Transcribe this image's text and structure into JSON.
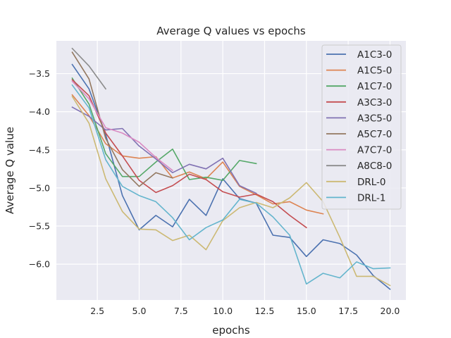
{
  "chart_data": {
    "type": "line",
    "title": "Average Q values vs epochs",
    "xlabel": "epochs",
    "ylabel": "Average Q value",
    "xlim": [
      0.05,
      20.95
    ],
    "ylim": [
      -6.47,
      -3.07
    ],
    "xticks": [
      2.5,
      5.0,
      7.5,
      10.0,
      12.5,
      15.0,
      17.5,
      20.0
    ],
    "xtick_labels": [
      "2.5",
      "5.0",
      "7.5",
      "10.0",
      "12.5",
      "15.0",
      "17.5",
      "20.0"
    ],
    "yticks": [
      -3.5,
      -4.0,
      -4.5,
      -5.0,
      -5.5,
      -6.0
    ],
    "ytick_labels": [
      "−3.5",
      "−4.0",
      "−4.5",
      "−5.0",
      "−5.5",
      "−6.0"
    ],
    "grid": true,
    "legend_position": "top-right",
    "series": [
      {
        "name": "A1C3-0",
        "color": "#4c72b0",
        "x": [
          1,
          2,
          3,
          4,
          5,
          6,
          7,
          8,
          9,
          10,
          11,
          12,
          13,
          14,
          15,
          16,
          17,
          18,
          19,
          20
        ],
        "y": [
          -3.38,
          -3.7,
          -4.3,
          -5.1,
          -5.55,
          -5.36,
          -5.51,
          -5.15,
          -5.36,
          -4.88,
          -5.14,
          -5.2,
          -5.62,
          -5.65,
          -5.9,
          -5.68,
          -5.73,
          -5.88,
          -6.15,
          -6.33
        ]
      },
      {
        "name": "A1C5-0",
        "color": "#dd8452",
        "x": [
          1,
          2,
          3,
          4,
          5,
          6,
          7,
          8,
          9,
          10,
          11,
          12,
          13,
          14,
          15,
          16
        ],
        "y": [
          -3.78,
          -4.05,
          -4.42,
          -4.58,
          -4.61,
          -4.59,
          -4.87,
          -4.79,
          -4.88,
          -4.66,
          -4.98,
          -5.09,
          -5.21,
          -5.18,
          -5.29,
          -5.34
        ]
      },
      {
        "name": "A1C7-0",
        "color": "#55a868",
        "x": [
          1,
          2,
          3,
          4,
          5,
          6,
          7,
          8,
          9,
          10,
          11,
          12
        ],
        "y": [
          -3.56,
          -3.9,
          -4.55,
          -4.85,
          -4.85,
          -4.66,
          -4.49,
          -4.89,
          -4.86,
          -4.9,
          -4.64,
          -4.68
        ]
      },
      {
        "name": "A3C3-0",
        "color": "#c44e52",
        "x": [
          1,
          2,
          3,
          4,
          5,
          6,
          7,
          8,
          9,
          10,
          11,
          12,
          13,
          14,
          15
        ],
        "y": [
          -3.58,
          -3.79,
          -4.28,
          -4.58,
          -4.9,
          -5.06,
          -4.97,
          -4.82,
          -4.89,
          -5.05,
          -5.12,
          -5.08,
          -5.18,
          -5.36,
          -5.52
        ]
      },
      {
        "name": "A3C5-0",
        "color": "#8172b3",
        "x": [
          1,
          2,
          3,
          4,
          5,
          6,
          7,
          8,
          9,
          10,
          11,
          12
        ],
        "y": [
          -3.94,
          -4.06,
          -4.24,
          -4.22,
          -4.45,
          -4.62,
          -4.8,
          -4.69,
          -4.75,
          -4.61,
          -4.97,
          -5.07
        ]
      },
      {
        "name": "A5C7-0",
        "color": "#937860",
        "x": [
          1,
          2,
          3,
          4,
          5,
          6,
          7
        ],
        "y": [
          -3.22,
          -3.57,
          -4.35,
          -4.76,
          -4.98,
          -4.8,
          -4.87
        ]
      },
      {
        "name": "A7C7-0",
        "color": "#da8bc3",
        "x": [
          1,
          2,
          3,
          4,
          5,
          6,
          7
        ],
        "y": [
          -3.6,
          -3.83,
          -4.21,
          -4.28,
          -4.4,
          -4.6,
          -4.77
        ]
      },
      {
        "name": "A8C8-0",
        "color": "#8c8c8c",
        "x": [
          1,
          2,
          3
        ],
        "y": [
          -3.17,
          -3.4,
          -3.7
        ]
      },
      {
        "name": "DRL-0",
        "color": "#ccb974",
        "x": [
          1,
          2,
          3,
          4,
          5,
          6,
          7,
          8,
          9,
          10,
          11,
          12,
          13,
          14,
          15,
          16,
          17,
          18,
          19,
          20
        ],
        "y": [
          -3.8,
          -4.15,
          -4.88,
          -5.31,
          -5.54,
          -5.55,
          -5.69,
          -5.62,
          -5.81,
          -5.43,
          -5.26,
          -5.19,
          -5.26,
          -5.13,
          -4.93,
          -5.18,
          -5.65,
          -6.16,
          -6.16,
          -6.28
        ]
      },
      {
        "name": "DRL-1",
        "color": "#64b5cd",
        "x": [
          1,
          2,
          3,
          4,
          5,
          6,
          7,
          8,
          9,
          10,
          11,
          12,
          13,
          14,
          15,
          16,
          17,
          18,
          19,
          20
        ],
        "y": [
          -3.65,
          -3.95,
          -4.63,
          -4.98,
          -5.1,
          -5.18,
          -5.39,
          -5.68,
          -5.52,
          -5.42,
          -5.15,
          -5.2,
          -5.38,
          -5.62,
          -6.26,
          -6.12,
          -6.18,
          -5.97,
          -6.06,
          -6.05
        ]
      }
    ]
  }
}
